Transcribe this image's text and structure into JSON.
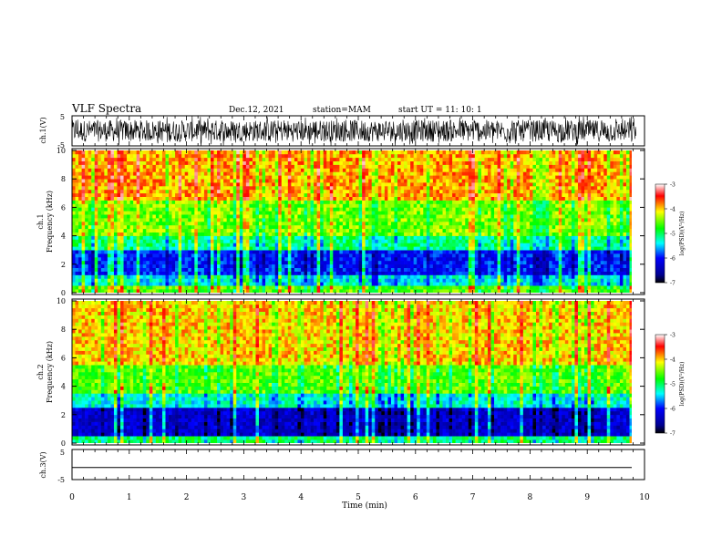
{
  "header": {
    "title": "VLF Spectra",
    "date": "Dec.12, 2021",
    "station": "station=MAM",
    "start": "start UT =   11: 10: 1"
  },
  "chart_data": [
    {
      "type": "line",
      "name": "ch1-waveform",
      "ylabel": "ch.1(V)",
      "ylim": [
        -5,
        5
      ],
      "ytick_labels": [
        "-5",
        "5"
      ],
      "xlim": [
        0,
        10
      ],
      "description_values": "dense noise-like waveform, amplitude roughly -5 to 5 V"
    },
    {
      "type": "heatmap",
      "name": "ch1-spectrogram",
      "ylabel_line1": "ch.1",
      "ylabel_line2": "Frequency (kHz)",
      "ylim": [
        0,
        10
      ],
      "ytick_labels": [
        "0",
        "2",
        "4",
        "6",
        "8",
        "10"
      ],
      "xlim": [
        0,
        9.85
      ],
      "colorbar": {
        "label": "log(PSD)(V²/Hz)",
        "range": [
          -7,
          -3
        ],
        "ticks": [
          "-3",
          "-4",
          "-5",
          "-6",
          "-7"
        ]
      },
      "bands_khz": [
        [
          0,
          1.2,
          "cyan-green-red mixed"
        ],
        [
          1.2,
          3.5,
          "blue-cyan"
        ],
        [
          3.5,
          6.5,
          "green-yellow"
        ],
        [
          6.5,
          10,
          "yellow-red"
        ]
      ]
    },
    {
      "type": "heatmap",
      "name": "ch2-spectrogram",
      "ylabel_line1": "ch.2",
      "ylabel_line2": "Frequency (kHz)",
      "ylim": [
        0,
        10
      ],
      "ytick_labels": [
        "0",
        "2",
        "4",
        "6",
        "8",
        "10"
      ],
      "xlim": [
        0,
        9.85
      ],
      "colorbar": {
        "label": "log(PSD)(V²/Hz)",
        "range": [
          -7,
          -3
        ],
        "ticks": [
          "-3",
          "-4",
          "-5",
          "-6",
          "-7"
        ]
      },
      "bands_khz": [
        [
          0,
          0.6,
          "green"
        ],
        [
          0.6,
          2.8,
          "dark blue"
        ],
        [
          2.8,
          5.5,
          "green-yellow"
        ],
        [
          5.5,
          10,
          "yellow-red"
        ]
      ]
    },
    {
      "type": "line",
      "name": "ch3-waveform",
      "ylabel": "ch.3(V)",
      "ylim": [
        -5,
        5
      ],
      "ytick_labels": [
        "-5",
        "5"
      ],
      "y": [
        -1.0
      ],
      "xlim": [
        0,
        10
      ]
    }
  ],
  "xaxis": {
    "label": "Time (min)",
    "ticks": [
      "0",
      "1",
      "2",
      "3",
      "4",
      "5",
      "6",
      "7",
      "8",
      "9",
      "10"
    ]
  }
}
